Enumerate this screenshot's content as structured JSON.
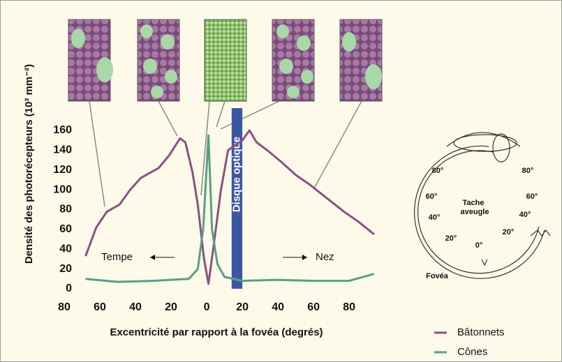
{
  "chart_data": {
    "type": "line",
    "ylabel": "Densité des photorécepteurs (10³ mm⁻²)",
    "xlabel": "Excentricité par rapport à la fovéa (degrés)",
    "xlim": [
      -80,
      96
    ],
    "ylim": [
      0,
      160
    ],
    "xticks": [
      {
        "value": -80,
        "label": "80"
      },
      {
        "value": -60,
        "label": "60"
      },
      {
        "value": -40,
        "label": "40"
      },
      {
        "value": -20,
        "label": "20"
      },
      0,
      20,
      40,
      60,
      80
    ],
    "yticks": [
      0,
      20,
      40,
      60,
      80,
      100,
      120,
      140,
      160
    ],
    "annotations": {
      "left": "Tempe",
      "right": "Nez"
    },
    "optic_disc": {
      "label": "Disque optique",
      "xrange": [
        14,
        20
      ]
    },
    "series": [
      {
        "name": "Bâtonnets",
        "color": "#8c4f80",
        "x": [
          -68,
          -62,
          -56,
          -49,
          -43,
          -37,
          -27,
          -21,
          -15,
          -12,
          -8,
          -5,
          -1.5,
          1,
          4,
          8,
          12,
          20,
          24,
          28,
          34,
          42,
          50,
          58,
          65,
          77,
          85,
          94
        ],
        "values": [
          33,
          62,
          78,
          85,
          100,
          112,
          122,
          135,
          152,
          148,
          118,
          85,
          30,
          5,
          45,
          100,
          140,
          150,
          160,
          148,
          140,
          128,
          115,
          105,
          95,
          78,
          68,
          55
        ]
      },
      {
        "name": "Cônes",
        "color": "#5a9e82",
        "x": [
          -68,
          -50,
          -30,
          -10,
          -5,
          -2,
          1,
          3,
          6,
          10,
          20,
          40,
          60,
          80,
          94
        ],
        "values": [
          10,
          7,
          8,
          10,
          20,
          60,
          155,
          60,
          25,
          12,
          8,
          9,
          8,
          8,
          15
        ]
      }
    ]
  },
  "eye_diagram": {
    "degrees": [
      "80°",
      "80°",
      "60°",
      "60°",
      "40°",
      "40°",
      "20°",
      "20°",
      "0°"
    ],
    "blind_spot": [
      "Tache",
      "aveugle"
    ],
    "fovea": "Fovéa"
  }
}
